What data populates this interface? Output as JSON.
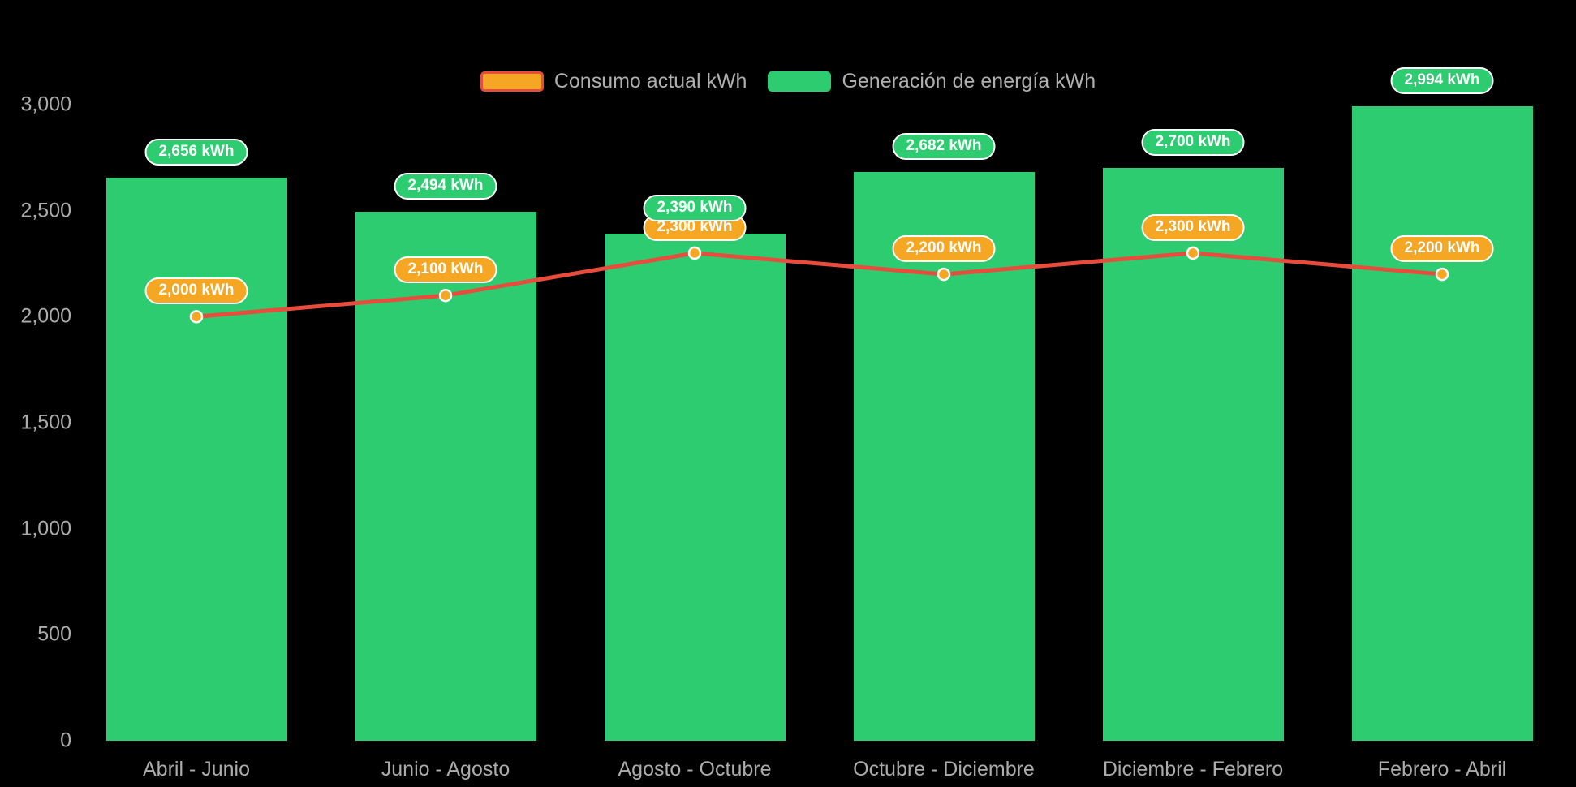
{
  "background": "#000000",
  "legend": {
    "items": [
      {
        "id": "consumo",
        "label": "Consumo actual kWh",
        "fill": "#F5A623",
        "border": "#E74C3C"
      },
      {
        "id": "generacion",
        "label": "Generación de energía kWh",
        "fill": "#2ECC71",
        "border": ""
      }
    ]
  },
  "chart_data": {
    "type": "combo",
    "categories": [
      "Abril - Junio",
      "Junio - Agosto",
      "Agosto - Octubre",
      "Octubre - Diciembre",
      "Diciembre - Febrero",
      "Febrero - Abril"
    ],
    "series": [
      {
        "name": "Consumo actual kWh",
        "type": "line",
        "color": "#E74C3C",
        "marker_color": "#F5A623",
        "values": [
          2000,
          2100,
          2300,
          2200,
          2300,
          2200
        ],
        "labels": [
          "2,000 kWh",
          "2,100 kWh",
          "2,300 kWh",
          "2,200 kWh",
          "2,300 kWh",
          "2,200 kWh"
        ]
      },
      {
        "name": "Generación de energía kWh",
        "type": "bar",
        "color": "#2ECC71",
        "values": [
          2656,
          2494,
          2390,
          2682,
          2700,
          2994
        ],
        "labels": [
          "2,656 kWh",
          "2,494 kWh",
          "2,390 kWh",
          "2,682 kWh",
          "2,700 kWh",
          "2,994 kWh"
        ]
      }
    ],
    "ylim": [
      0,
      3000
    ],
    "yticks": [
      0,
      500,
      1000,
      1500,
      2000,
      2500,
      3000
    ],
    "ytick_labels": [
      "0",
      "500",
      "1,000",
      "1,500",
      "2,000",
      "2,500",
      "3,000"
    ],
    "grid": false,
    "legend_position": "top",
    "axis_text_color": "#ABABAB"
  }
}
